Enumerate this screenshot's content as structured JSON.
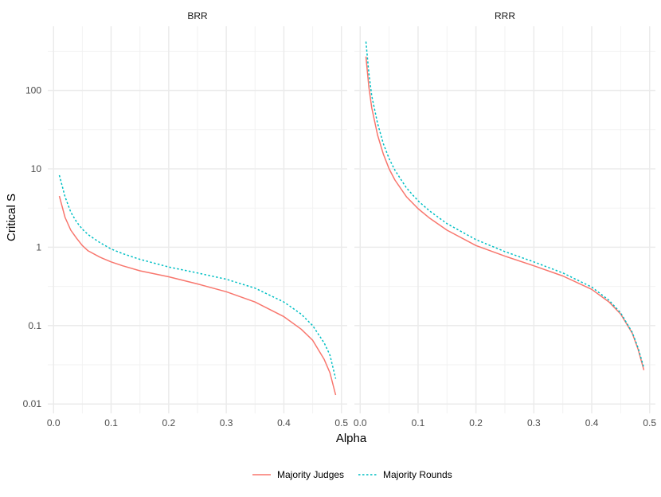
{
  "chart_data": {
    "type": "line",
    "xlabel": "Alpha",
    "ylabel": "Critical S",
    "y_scale": "log10",
    "grid": true,
    "legend_position": "bottom",
    "xlim": [
      0.0,
      0.5
    ],
    "ylim": [
      0.01,
      500
    ],
    "x_ticks": [
      0.0,
      0.1,
      0.2,
      0.3,
      0.4,
      0.5
    ],
    "x_tick_labels": [
      "0.0",
      "0.1",
      "0.2",
      "0.3",
      "0.4",
      "0.5"
    ],
    "y_ticks": [
      0.01,
      0.1,
      1,
      10,
      100
    ],
    "y_tick_labels": [
      "0.01",
      "0.1",
      "1",
      "10",
      "100"
    ],
    "legend": [
      {
        "name": "Majority Judges",
        "color": "#F8766D",
        "dash": "solid"
      },
      {
        "name": "Majority Rounds",
        "color": "#00BFC4",
        "dash": "dotted"
      }
    ],
    "panels": [
      {
        "title": "BRR",
        "series": [
          {
            "name": "Majority Judges",
            "x": [
              0.01,
              0.02,
              0.03,
              0.04,
              0.05,
              0.06,
              0.08,
              0.1,
              0.12,
              0.15,
              0.2,
              0.25,
              0.3,
              0.35,
              0.4,
              0.43,
              0.45,
              0.47,
              0.48,
              0.49
            ],
            "y": [
              4.5,
              2.4,
              1.65,
              1.3,
              1.05,
              0.9,
              0.75,
              0.65,
              0.58,
              0.5,
              0.42,
              0.34,
              0.27,
              0.2,
              0.13,
              0.09,
              0.065,
              0.037,
              0.025,
              0.013
            ]
          },
          {
            "name": "Majority Rounds",
            "x": [
              0.01,
              0.02,
              0.03,
              0.04,
              0.05,
              0.06,
              0.08,
              0.1,
              0.12,
              0.15,
              0.2,
              0.25,
              0.3,
              0.35,
              0.4,
              0.43,
              0.45,
              0.47,
              0.48,
              0.49
            ],
            "y": [
              8.3,
              4.4,
              2.8,
              2.1,
              1.7,
              1.45,
              1.15,
              0.95,
              0.83,
              0.7,
              0.56,
              0.47,
              0.39,
              0.3,
              0.2,
              0.14,
              0.1,
              0.06,
              0.042,
              0.021
            ]
          }
        ]
      },
      {
        "title": "RRR",
        "series": [
          {
            "name": "Majority Judges",
            "x": [
              0.01,
              0.015,
              0.02,
              0.03,
              0.04,
              0.05,
              0.06,
              0.08,
              0.1,
              0.12,
              0.15,
              0.2,
              0.25,
              0.3,
              0.35,
              0.4,
              0.43,
              0.45,
              0.47,
              0.48,
              0.49
            ],
            "y": [
              270,
              110,
              60,
              27,
              15.5,
              10,
              7.2,
              4.4,
              3.1,
              2.35,
              1.65,
              1.05,
              0.77,
              0.58,
              0.43,
              0.29,
              0.2,
              0.14,
              0.08,
              0.05,
              0.027
            ]
          },
          {
            "name": "Majority Rounds",
            "x": [
              0.01,
              0.015,
              0.02,
              0.03,
              0.04,
              0.05,
              0.06,
              0.08,
              0.1,
              0.12,
              0.15,
              0.2,
              0.25,
              0.3,
              0.35,
              0.4,
              0.43,
              0.45,
              0.47,
              0.48,
              0.49
            ],
            "y": [
              420,
              165,
              85,
              38,
              21,
              13.5,
              9.6,
              5.7,
              3.9,
              2.9,
              2.0,
              1.25,
              0.88,
              0.65,
              0.47,
              0.31,
              0.21,
              0.145,
              0.082,
              0.052,
              0.029
            ]
          }
        ]
      }
    ]
  }
}
